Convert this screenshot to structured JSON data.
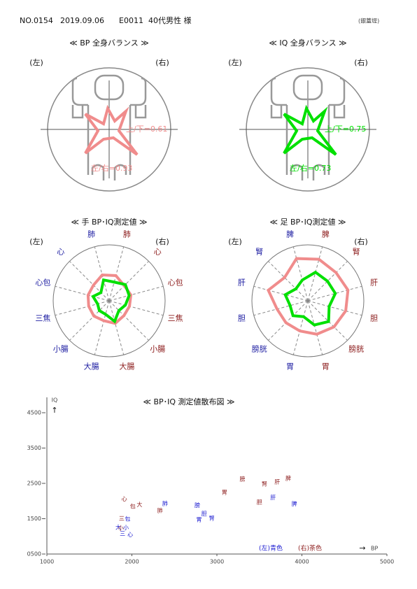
{
  "header": {
    "number": "NO.0154",
    "date": "2019.09.06",
    "id": "E0011",
    "patient": "40代男性 様",
    "note": "(銀蓋堤)"
  },
  "balance": [
    {
      "title": "≪ BP 全身バランス ≫",
      "left": "(左)",
      "right": "(右)",
      "color": "#f08c8c",
      "up_down_label": "上/下=",
      "up_down": 0.61,
      "left_right_label": "左/右=",
      "left_right": 0.93
    },
    {
      "title": "≪ IQ 全身バランス ≫",
      "left": "(左)",
      "right": "(右)",
      "color": "#00e000",
      "up_down_label": "上/下=",
      "up_down": 0.75,
      "left_right_label": "左/右=",
      "left_right": 0.73
    }
  ],
  "chart_data": [
    {
      "type": "radar",
      "title": "≪ 手 BP･IQ測定値 ≫",
      "left_label": "(左)",
      "right_label": "(右)",
      "categories": [
        "肺",
        "心",
        "心包",
        "三焦",
        "小腸",
        "大腸",
        "大腸",
        "小腸",
        "三焦",
        "心包",
        "心",
        "肺"
      ],
      "category_colors": [
        "#8b1a1a",
        "#8b1a1a",
        "#8b1a1a",
        "#8b1a1a",
        "#8b1a1a",
        "#8b1a1a",
        "#1a1aa0",
        "#1a1aa0",
        "#1a1aa0",
        "#1a1aa0",
        "#1a1aa0",
        "#1a1aa0"
      ],
      "rlim": [
        0,
        5000
      ],
      "series": [
        {
          "color": "#f08c8c",
          "values": [
            2330,
            1910,
            2010,
            1880,
            1870,
            2090,
            1840,
            1930,
            1890,
            1950,
            1980,
            2390
          ]
        },
        {
          "color": "#00e000",
          "values": [
            1730,
            2050,
            1850,
            1500,
            1230,
            1900,
            1250,
            1240,
            1070,
            1490,
            1040,
            1930
          ]
        }
      ]
    },
    {
      "type": "radar",
      "title": "≪ 足 BP･IQ測定値 ≫",
      "left_label": "(左)",
      "right_label": "(右)",
      "categories": [
        "脾",
        "腎",
        "肝",
        "胆",
        "膀胱",
        "胃",
        "胃",
        "膀胱",
        "胆",
        "肝",
        "腎",
        "脾"
      ],
      "category_colors": [
        "#8b1a1a",
        "#8b1a1a",
        "#8b1a1a",
        "#8b1a1a",
        "#8b1a1a",
        "#8b1a1a",
        "#1a1aa0",
        "#1a1aa0",
        "#1a1aa0",
        "#1a1aa0",
        "#1a1aa0",
        "#1a1aa0"
      ],
      "rlim": [
        0,
        5000
      ],
      "series": [
        {
          "color": "#f08c8c",
          "values": [
            3840,
            3560,
            3710,
            3500,
            3300,
            3090,
            2790,
            2770,
            2850,
            3660,
            2940,
            3910
          ]
        },
        {
          "color": "#00e000",
          "values": [
            2640,
            2480,
            2540,
            1970,
            2620,
            2240,
            1470,
            1880,
            1640,
            2090,
            1510,
            1920
          ]
        }
      ]
    },
    {
      "type": "scatter",
      "title": "≪ BP･IQ 測定値散布図 ≫",
      "xlabel": "BP",
      "ylabel": "IQ",
      "xlim": [
        1000,
        5000
      ],
      "ylim": [
        500,
        4500
      ],
      "xticks": [
        1000,
        2000,
        3000,
        4000,
        5000
      ],
      "yticks": [
        {
          "value": 500,
          "label": "0500"
        },
        1500,
        2500,
        3500,
        4500
      ],
      "series": [
        {
          "name": "(左)青色",
          "color": "#1a1ad0",
          "labels": [
            "肺",
            "心",
            "包",
            "三",
            "小",
            "大",
            "脾",
            "腎",
            "肝",
            "胆",
            "膀",
            "胃"
          ],
          "x": [
            2390,
            1980,
            1950,
            1890,
            1930,
            1840,
            3910,
            2940,
            3660,
            2850,
            2770,
            2790
          ],
          "values": [
            1930,
            1040,
            1490,
            1070,
            1240,
            1250,
            1920,
            1510,
            2090,
            1640,
            1880,
            1470
          ]
        },
        {
          "name": "(右)茶色",
          "color": "#8b1a1a",
          "labels": [
            "肺",
            "心",
            "包",
            "三",
            "小",
            "大",
            "脾",
            "腎",
            "肝",
            "胆",
            "膀",
            "胃"
          ],
          "x": [
            2330,
            1910,
            2010,
            1880,
            1870,
            2090,
            3840,
            3560,
            3710,
            3500,
            3300,
            3090
          ],
          "values": [
            1730,
            2050,
            1850,
            1500,
            1230,
            1900,
            2640,
            2480,
            2540,
            1970,
            2620,
            2240
          ]
        }
      ]
    }
  ]
}
